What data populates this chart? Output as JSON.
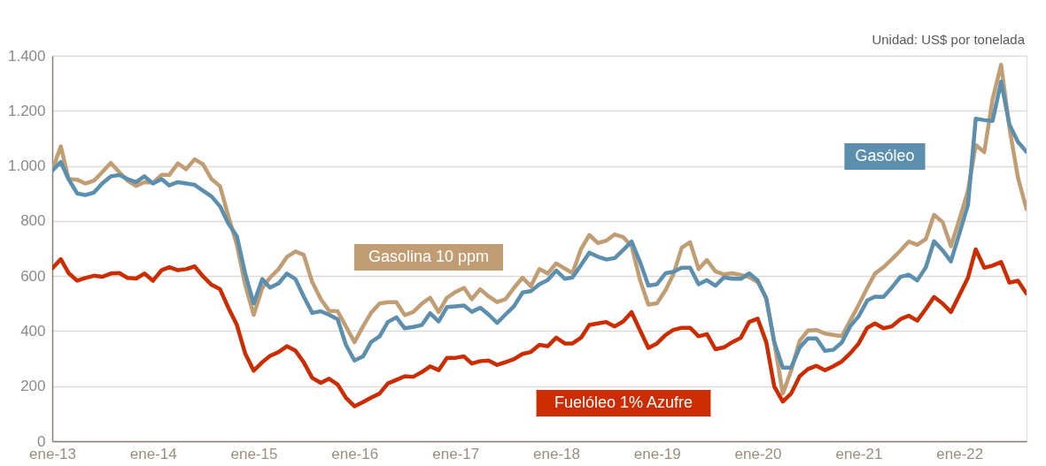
{
  "chart_data": {
    "type": "line",
    "annotations": [
      "Unidad: US$ por tonelada"
    ],
    "x": [
      "2013-01",
      "2013-02",
      "2013-03",
      "2013-04",
      "2013-05",
      "2013-06",
      "2013-07",
      "2013-08",
      "2013-09",
      "2013-10",
      "2013-11",
      "2013-12",
      "2014-01",
      "2014-02",
      "2014-03",
      "2014-04",
      "2014-05",
      "2014-06",
      "2014-07",
      "2014-08",
      "2014-09",
      "2014-10",
      "2014-11",
      "2014-12",
      "2015-01",
      "2015-02",
      "2015-03",
      "2015-04",
      "2015-05",
      "2015-06",
      "2015-07",
      "2015-08",
      "2015-09",
      "2015-10",
      "2015-11",
      "2015-12",
      "2016-01",
      "2016-02",
      "2016-03",
      "2016-04",
      "2016-05",
      "2016-06",
      "2016-07",
      "2016-08",
      "2016-09",
      "2016-10",
      "2016-11",
      "2016-12",
      "2017-01",
      "2017-02",
      "2017-03",
      "2017-04",
      "2017-05",
      "2017-06",
      "2017-07",
      "2017-08",
      "2017-09",
      "2017-10",
      "2017-11",
      "2017-12",
      "2018-01",
      "2018-02",
      "2018-03",
      "2018-04",
      "2018-05",
      "2018-06",
      "2018-07",
      "2018-08",
      "2018-09",
      "2018-10",
      "2018-11",
      "2018-12",
      "2019-01",
      "2019-02",
      "2019-03",
      "2019-04",
      "2019-05",
      "2019-06",
      "2019-07",
      "2019-08",
      "2019-09",
      "2019-10",
      "2019-11",
      "2019-12",
      "2020-01",
      "2020-02",
      "2020-03",
      "2020-04",
      "2020-05",
      "2020-06",
      "2020-07",
      "2020-08",
      "2020-09",
      "2020-10",
      "2020-11",
      "2020-12",
      "2021-01",
      "2021-02",
      "2021-03",
      "2021-04",
      "2021-05",
      "2021-06",
      "2021-07",
      "2021-08",
      "2021-09",
      "2021-10",
      "2021-11",
      "2021-12",
      "2022-01",
      "2022-02",
      "2022-03",
      "2022-04",
      "2022-05",
      "2022-06",
      "2022-07",
      "2022-08",
      "2022-09"
    ],
    "series": [
      {
        "name": "Gasolina 10 ppm",
        "color": "#c19d74",
        "values": [
          983,
          1071,
          952,
          950,
          936,
          946,
          977,
          1011,
          977,
          946,
          927,
          941,
          939,
          967,
          967,
          1009,
          988,
          1024,
          1006,
          952,
          926,
          817,
          713,
          568,
          459,
          557,
          594,
          625,
          669,
          689,
          677,
          578,
          516,
          474,
          472,
          417,
          360,
          417,
          466,
          500,
          505,
          505,
          458,
          469,
          500,
          521,
          469,
          521,
          542,
          557,
          516,
          552,
          526,
          505,
          516,
          557,
          594,
          563,
          625,
          609,
          646,
          627,
          611,
          698,
          749,
          720,
          728,
          751,
          741,
          709,
          584,
          496,
          501,
          548,
          605,
          703,
          723,
          625,
          658,
          617,
          606,
          610,
          604,
          596,
          578,
          521,
          360,
          173,
          256,
          365,
          402,
          404,
          391,
          386,
          381,
          438,
          495,
          557,
          609,
          632,
          661,
          692,
          725,
          713,
          734,
          822,
          796,
          708,
          806,
          910,
          1076,
          1050,
          1242,
          1367,
          1139,
          957,
          843
        ]
      },
      {
        "name": "Gasóleo",
        "color": "#5b8fad",
        "values": [
          983,
          1014,
          952,
          900,
          894,
          903,
          936,
          962,
          967,
          952,
          941,
          962,
          936,
          952,
          929,
          941,
          936,
          931,
          910,
          889,
          853,
          791,
          744,
          609,
          500,
          589,
          558,
          573,
          609,
          589,
          526,
          466,
          472,
          459,
          443,
          350,
          293,
          308,
          360,
          381,
          433,
          450,
          410,
          415,
          422,
          465,
          435,
          487,
          490,
          493,
          470,
          485,
          460,
          430,
          460,
          490,
          540,
          545,
          570,
          585,
          620,
          590,
          595,
          640,
          685,
          670,
          660,
          665,
          695,
          725,
          650,
          565,
          570,
          610,
          615,
          630,
          630,
          570,
          585,
          565,
          595,
          590,
          590,
          610,
          584,
          518,
          360,
          267,
          267,
          340,
          373,
          373,
          328,
          332,
          359,
          417,
          454,
          511,
          525,
          524,
          558,
          597,
          605,
          584,
          631,
          726,
          693,
          653,
          755,
          859,
          1171,
          1166,
          1163,
          1306,
          1150,
          1087,
          1051
        ]
      },
      {
        "name": "Fuelóleo 1% Azufre",
        "color": "#cc2c00",
        "values": [
          628,
          661,
          611,
          583,
          593,
          601,
          597,
          609,
          611,
          593,
          591,
          609,
          583,
          621,
          632,
          621,
          625,
          635,
          599,
          568,
          552,
          485,
          422,
          319,
          256,
          287,
          310,
          324,
          345,
          329,
          287,
          230,
          212,
          227,
          206,
          158,
          127,
          142,
          158,
          173,
          210,
          223,
          236,
          234,
          251,
          272,
          258,
          303,
          303,
          308,
          282,
          291,
          293,
          277,
          287,
          298,
          317,
          324,
          350,
          345,
          376,
          355,
          355,
          376,
          422,
          428,
          433,
          417,
          435,
          469,
          402,
          339,
          355,
          386,
          404,
          412,
          412,
          381,
          389,
          334,
          341,
          360,
          376,
          433,
          445,
          360,
          199,
          144,
          173,
          236,
          262,
          274,
          258,
          272,
          290,
          319,
          355,
          412,
          428,
          410,
          417,
          443,
          456,
          438,
          480,
          524,
          500,
          469,
          531,
          594,
          697,
          630,
          638,
          651,
          576,
          583,
          536
        ]
      }
    ],
    "xlim": [
      "2013-01",
      "2022-09"
    ],
    "xticks": [
      {
        "value": "2013-01",
        "label": "ene-13"
      },
      {
        "value": "2014-01",
        "label": "ene-14"
      },
      {
        "value": "2015-01",
        "label": "ene-15"
      },
      {
        "value": "2016-01",
        "label": "ene-16"
      },
      {
        "value": "2017-01",
        "label": "ene-17"
      },
      {
        "value": "2018-01",
        "label": "ene-18"
      },
      {
        "value": "2019-01",
        "label": "ene-19"
      },
      {
        "value": "2020-01",
        "label": "ene-20"
      },
      {
        "value": "2021-01",
        "label": "ene-21"
      },
      {
        "value": "2022-01",
        "label": "ene-22"
      }
    ],
    "ylim": [
      0,
      1400
    ],
    "yticks": [
      0,
      200,
      400,
      600,
      800,
      {
        "value": 1000,
        "label": "1.000"
      },
      {
        "value": 1200,
        "label": "1.200"
      },
      {
        "value": 1400,
        "label": "1.400"
      }
    ],
    "grid": "y",
    "legend": false,
    "line_style": "solid",
    "marker": "none"
  }
}
